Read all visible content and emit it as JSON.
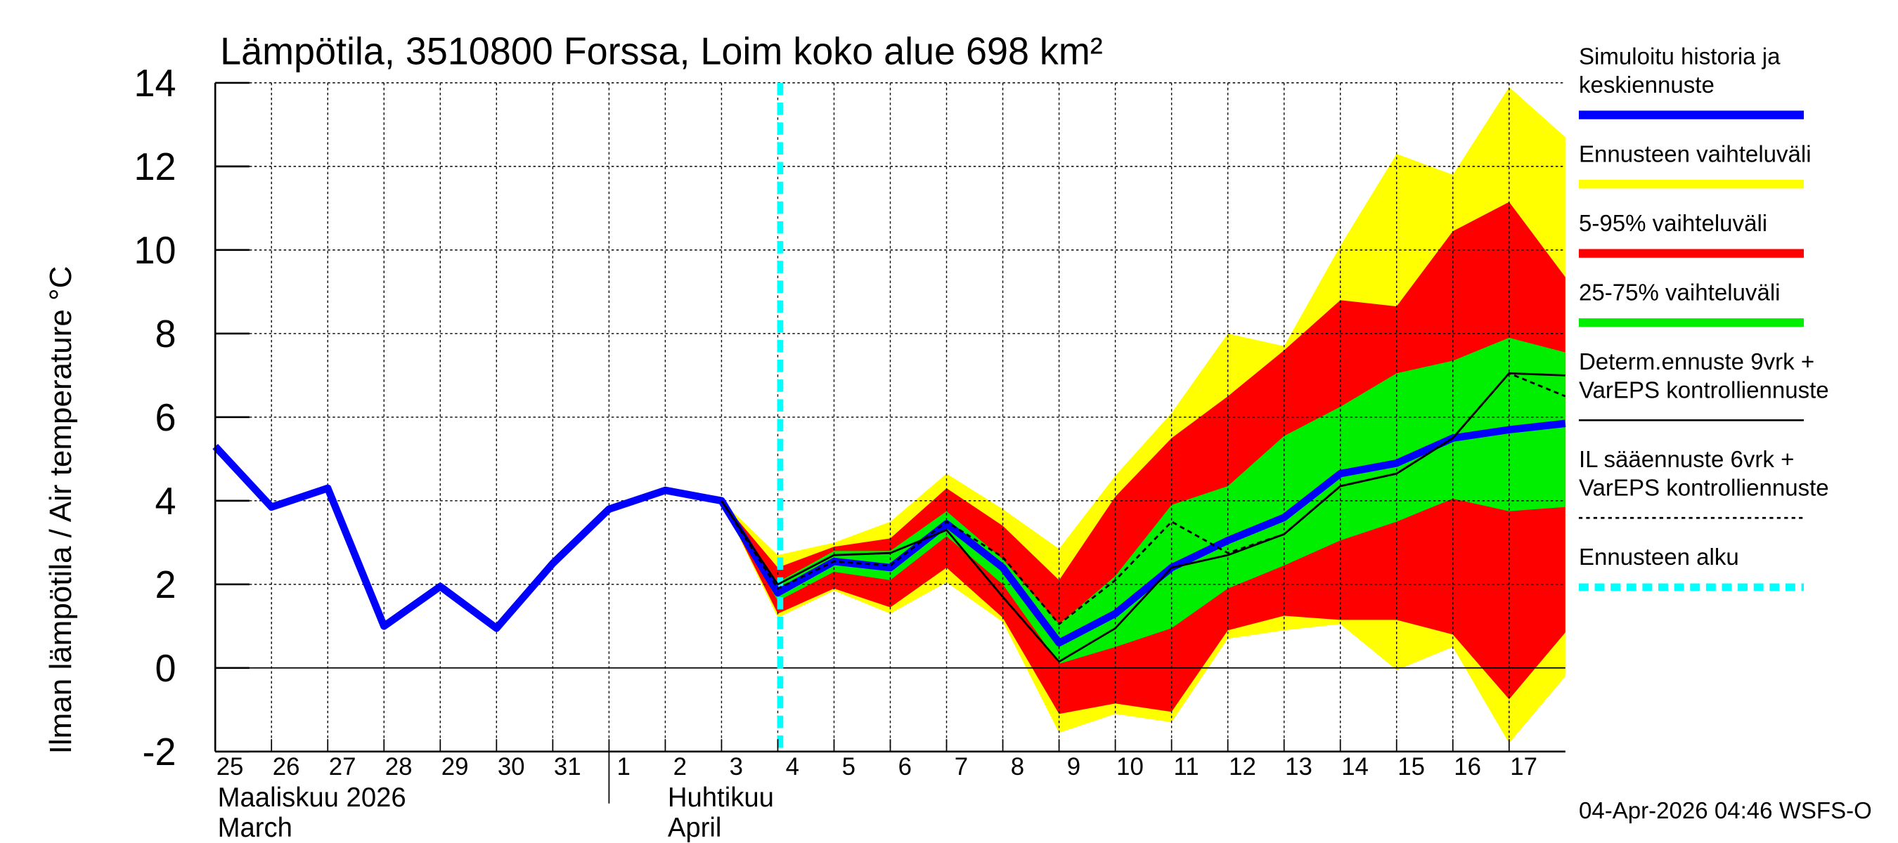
{
  "chart_data": {
    "type": "area",
    "title": "Lämpötila, 3510800 Forssa, Loim koko alue 698 km²",
    "ylabel": "Ilman lämpötila / Air temperature    °C",
    "ylim": [
      -2,
      14
    ],
    "yticks": [
      -2,
      0,
      2,
      4,
      6,
      8,
      10,
      12,
      14
    ],
    "grid": true,
    "x_labels": [
      "25",
      "26",
      "27",
      "28",
      "29",
      "30",
      "31",
      "1",
      "2",
      "3",
      "4",
      "5",
      "6",
      "7",
      "8",
      "9",
      "10",
      "11",
      "12",
      "13",
      "14",
      "15",
      "16",
      "17"
    ],
    "month_labels": [
      {
        "fi": "Maaliskuu 2026",
        "en": "March"
      },
      {
        "fi": "Huhtikuu",
        "en": "April"
      }
    ],
    "forecast_start_index": 10,
    "series": [
      {
        "name": "Simuloitu historia ja keskiennuste",
        "color": "#0000ff",
        "start": 0,
        "values": [
          5.3,
          3.85,
          4.3,
          1.0,
          1.95,
          0.95,
          2.5,
          3.8,
          4.25,
          4.0,
          1.8,
          2.55,
          2.4,
          3.45,
          2.4,
          0.6,
          1.3,
          2.4,
          3.05,
          3.6,
          4.65,
          4.9,
          5.5,
          5.7,
          5.85
        ]
      },
      {
        "name": "Determ.ennuste 9vrk + VarEPS kontrolliennuste",
        "color": "#000000",
        "start": 9,
        "values": [
          4.0,
          2.0,
          2.7,
          2.75,
          3.3,
          1.7,
          0.15,
          0.95,
          2.4,
          2.7,
          3.2,
          4.35,
          4.65,
          5.5,
          7.05,
          7.0
        ]
      },
      {
        "name": "IL sääennuste 6vrk + VarEPS kontrolliennuste",
        "color": "#000000",
        "dashed": true,
        "start": 9,
        "values": [
          4.0,
          1.9,
          2.55,
          2.45,
          3.5,
          2.65,
          1.05,
          2.1,
          3.5,
          2.75,
          3.2,
          4.35,
          4.65,
          5.5,
          7.05,
          6.5
        ]
      }
    ],
    "bands": [
      {
        "name": "Ennusteen vaihteluväli",
        "color": "#ffff00",
        "start": 9,
        "upper": [
          4.0,
          2.7,
          3.0,
          3.5,
          4.65,
          3.8,
          2.85,
          4.6,
          6.1,
          8.0,
          7.7,
          10.1,
          12.3,
          11.8,
          13.9,
          12.7
        ],
        "lower": [
          4.0,
          1.2,
          1.85,
          1.3,
          2.05,
          1.1,
          -1.55,
          -1.1,
          -1.3,
          0.7,
          0.9,
          1.05,
          -0.05,
          0.5,
          -1.8,
          -0.2
        ]
      },
      {
        "name": "5-95% vaihteluväli",
        "color": "#ff0000",
        "start": 9,
        "upper": [
          4.0,
          2.4,
          2.9,
          3.1,
          4.3,
          3.4,
          2.1,
          4.1,
          5.5,
          6.5,
          7.6,
          8.8,
          8.65,
          10.45,
          11.15,
          9.35
        ],
        "lower": [
          4.0,
          1.3,
          1.9,
          1.45,
          2.4,
          1.2,
          -1.1,
          -0.85,
          -1.05,
          0.9,
          1.25,
          1.15,
          1.15,
          0.8,
          -0.75,
          0.85
        ]
      },
      {
        "name": "25-75% vaihteluväli",
        "color": "#00ee00",
        "start": 9,
        "upper": [
          4.0,
          2.05,
          2.8,
          2.8,
          3.75,
          2.6,
          1.05,
          2.2,
          3.9,
          4.35,
          5.55,
          6.25,
          7.05,
          7.35,
          7.9,
          7.55
        ],
        "lower": [
          4.0,
          1.6,
          2.3,
          2.1,
          3.15,
          2.0,
          0.1,
          0.5,
          0.95,
          1.9,
          2.45,
          3.05,
          3.5,
          4.05,
          3.75,
          3.85
        ]
      }
    ],
    "legend": {
      "placement": "right",
      "items": [
        {
          "lines": [
            "Simuloitu historia ja",
            "keskiennuste"
          ],
          "color": "#0000ff",
          "style": "thick"
        },
        {
          "lines": [
            "Ennusteen vaihteluväli"
          ],
          "color": "#ffff00",
          "style": "thick"
        },
        {
          "lines": [
            "5-95% vaihteluväli"
          ],
          "color": "#ff0000",
          "style": "thick"
        },
        {
          "lines": [
            "25-75% vaihteluväli"
          ],
          "color": "#00ee00",
          "style": "thick"
        },
        {
          "lines": [
            "Determ.ennuste 9vrk +",
            "VarEPS kontrolliennuste"
          ],
          "color": "#000000",
          "style": "thin"
        },
        {
          "lines": [
            "IL sääennuste 6vrk  +",
            "  VarEPS kontrolliennuste"
          ],
          "color": "#000000",
          "style": "dotted"
        },
        {
          "lines": [
            "Ennusteen alku"
          ],
          "color": "#00ffff",
          "style": "cyan-dash"
        }
      ]
    },
    "footer": "04-Apr-2026 04:46 WSFS-O"
  }
}
